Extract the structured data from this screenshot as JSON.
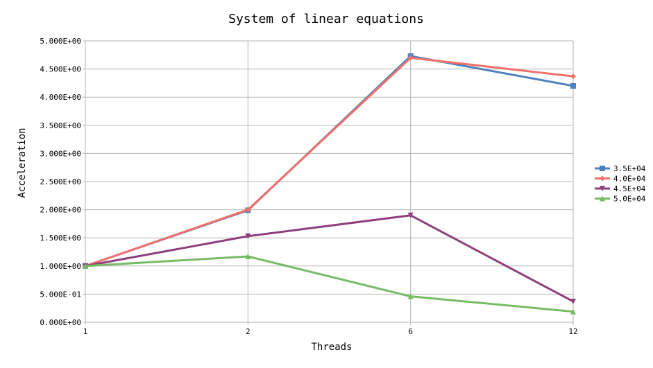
{
  "chart_data": {
    "type": "line",
    "title": "System of linear equations",
    "xlabel": "Threads",
    "ylabel": "Acceleration",
    "categories": [
      "1",
      "2",
      "6",
      "12"
    ],
    "ylim": [
      0,
      5
    ],
    "yticks": [
      0,
      0.5,
      1,
      1.5,
      2,
      2.5,
      3,
      3.5,
      4,
      4.5,
      5
    ],
    "ytick_labels": [
      "0.000E+00",
      "5.000E-01",
      "1.000E+00",
      "1.500E+00",
      "2.000E+00",
      "2.500E+00",
      "3.000E+00",
      "3.500E+00",
      "4.000E+00",
      "4.500E+00",
      "5.000E+00"
    ],
    "grid": true,
    "legend_position": "right",
    "series": [
      {
        "name": "3.5E+04",
        "values": [
          1.0,
          1.99,
          4.73,
          4.2
        ],
        "color": "#4f81bd",
        "marker": "square"
      },
      {
        "name": "4.0E+04",
        "values": [
          1.0,
          2.0,
          4.7,
          4.37
        ],
        "color": "#f0706b",
        "marker": "diamond"
      },
      {
        "name": "4.5E+04",
        "values": [
          1.0,
          1.53,
          1.9,
          0.37
        ],
        "color": "#8e3f7c",
        "marker": "triangle-down"
      },
      {
        "name": "5.0E+04",
        "values": [
          1.0,
          1.17,
          0.46,
          0.19
        ],
        "color": "#77bb65",
        "marker": "triangle-up"
      }
    ]
  }
}
